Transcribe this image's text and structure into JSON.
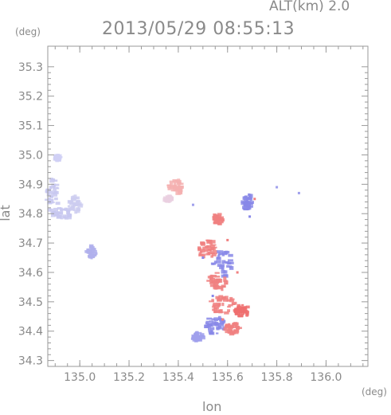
{
  "header": {
    "altitude_label": "ALT(km) 2.0",
    "timestamp": "2013/05/29 08:55:13",
    "y_unit": "(deg)",
    "x_unit": "(deg)"
  },
  "colors": {
    "frame": "#9a9a9a",
    "text": "#8a8a8a",
    "positive": "#f08080",
    "negative": "#8080f0",
    "neutral": "#c8c8f0"
  },
  "chart_data": {
    "type": "scatter",
    "title": "2013/05/29 08:55:13",
    "subtitle": "ALT(km) 2.0",
    "xlabel": "lon",
    "ylabel": "lat",
    "x_unit": "(deg)",
    "y_unit": "(deg)",
    "xlim": [
      134.87,
      136.17
    ],
    "ylim": [
      34.28,
      35.37
    ],
    "x_ticks": [
      135.0,
      135.2,
      135.4,
      135.6,
      135.8,
      136.0
    ],
    "x_tick_labels": [
      "135.0",
      "135.2",
      "135.4",
      "135.6",
      "135.8",
      "136.0"
    ],
    "y_ticks": [
      34.3,
      34.4,
      34.5,
      34.6,
      34.7,
      34.8,
      34.9,
      35.0,
      35.1,
      35.2,
      35.3
    ],
    "y_tick_labels": [
      "34.3",
      "34.4",
      "34.5",
      "34.6",
      "34.7",
      "34.8",
      "34.9",
      "35.0",
      "35.1",
      "35.2",
      "35.3"
    ],
    "grid": false,
    "legend": "none",
    "clusters": [
      {
        "lon": 134.89,
        "lat": 34.86,
        "rlon": 0.025,
        "rlat": 0.06,
        "color": "#c8c8f0"
      },
      {
        "lon": 134.93,
        "lat": 34.8,
        "rlon": 0.04,
        "rlat": 0.02,
        "color": "#c8c8f0"
      },
      {
        "lon": 134.98,
        "lat": 34.83,
        "rlon": 0.025,
        "rlat": 0.03,
        "color": "#ccccf0"
      },
      {
        "lon": 134.91,
        "lat": 34.99,
        "rlon": 0.01,
        "rlat": 0.01,
        "color": "#d0d0f4"
      },
      {
        "lon": 135.05,
        "lat": 34.67,
        "rlon": 0.02,
        "rlat": 0.02,
        "color": "#b0b0ec"
      },
      {
        "lon": 135.39,
        "lat": 34.89,
        "rlon": 0.03,
        "rlat": 0.025,
        "color": "#f4b0b0"
      },
      {
        "lon": 135.36,
        "lat": 34.85,
        "rlon": 0.015,
        "rlat": 0.01,
        "color": "#ead0e0"
      },
      {
        "lon": 135.56,
        "lat": 34.78,
        "rlon": 0.02,
        "rlat": 0.02,
        "color": "#f08080"
      },
      {
        "lon": 135.68,
        "lat": 34.84,
        "rlon": 0.02,
        "rlat": 0.03,
        "color": "#8888e8"
      },
      {
        "lon": 135.52,
        "lat": 34.68,
        "rlon": 0.04,
        "rlat": 0.03,
        "color": "#f08080"
      },
      {
        "lon": 135.58,
        "lat": 34.63,
        "rlon": 0.04,
        "rlat": 0.05,
        "color": "#8888e8"
      },
      {
        "lon": 135.56,
        "lat": 34.57,
        "rlon": 0.04,
        "rlat": 0.03,
        "color": "#f08080"
      },
      {
        "lon": 135.58,
        "lat": 34.49,
        "rlon": 0.05,
        "rlat": 0.03,
        "color": "#f08080"
      },
      {
        "lon": 135.66,
        "lat": 34.47,
        "rlon": 0.03,
        "rlat": 0.02,
        "color": "#ee6e6e"
      },
      {
        "lon": 135.55,
        "lat": 34.42,
        "rlon": 0.04,
        "rlat": 0.03,
        "color": "#8888e8"
      },
      {
        "lon": 135.62,
        "lat": 34.41,
        "rlon": 0.03,
        "rlat": 0.02,
        "color": "#f08080"
      },
      {
        "lon": 135.48,
        "lat": 34.38,
        "rlon": 0.02,
        "rlat": 0.015,
        "color": "#a0a0ec"
      }
    ],
    "points": [
      {
        "lon": 135.58,
        "lat": 34.44,
        "color": "#f08080"
      },
      {
        "lon": 135.54,
        "lat": 34.52,
        "color": "#8888e8"
      },
      {
        "lon": 135.5,
        "lat": 34.65,
        "color": "#8888e8"
      },
      {
        "lon": 135.69,
        "lat": 34.79,
        "color": "#8888e8"
      },
      {
        "lon": 135.71,
        "lat": 34.85,
        "color": "#f08080"
      },
      {
        "lon": 135.8,
        "lat": 34.89,
        "color": "#a0a0ec"
      },
      {
        "lon": 135.89,
        "lat": 34.87,
        "color": "#a0a0ec"
      },
      {
        "lon": 135.46,
        "lat": 34.83,
        "color": "#a0a0ec"
      },
      {
        "lon": 135.6,
        "lat": 34.71,
        "color": "#f08080"
      },
      {
        "lon": 135.64,
        "lat": 34.6,
        "color": "#f08080"
      }
    ]
  }
}
